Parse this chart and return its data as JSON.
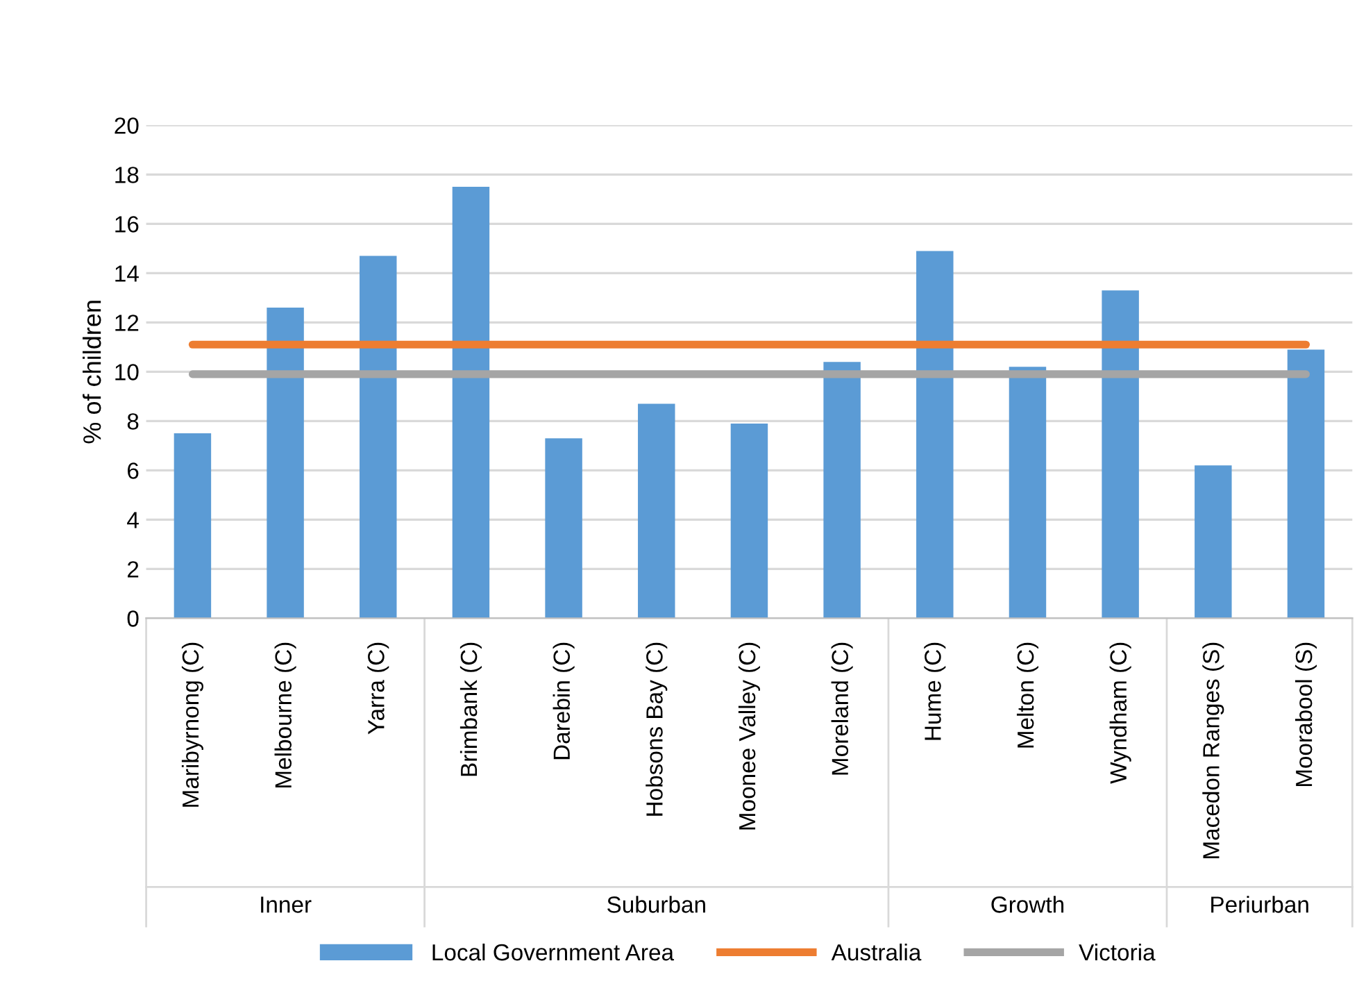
{
  "chart_data": {
    "type": "bar",
    "ylabel": "% of children",
    "categories": [
      "Maribyrnong (C)",
      "Melbourne (C)",
      "Yarra (C)",
      "Brimbank (C)",
      "Darebin (C)",
      "Hobsons Bay (C)",
      "Moonee Valley (C)",
      "Moreland (C)",
      "Hume (C)",
      "Melton (C)",
      "Wyndham (C)",
      "Macedon Ranges (S)",
      "Moorabool (S)"
    ],
    "series": [
      {
        "name": "Local Government Area",
        "color": "#5b9bd5",
        "values": [
          7.5,
          12.6,
          14.7,
          17.5,
          7.3,
          8.7,
          7.9,
          10.4,
          14.9,
          10.2,
          13.3,
          6.2,
          10.9
        ]
      },
      {
        "name": "Australia",
        "type": "line",
        "color": "#ed7d31",
        "values": [
          11.1,
          11.1,
          11.1,
          11.1,
          11.1,
          11.1,
          11.1,
          11.1,
          11.1,
          11.1,
          11.1,
          11.1,
          11.1
        ]
      },
      {
        "name": "Victoria",
        "type": "line",
        "color": "#a5a5a5",
        "values": [
          9.9,
          9.9,
          9.9,
          9.9,
          9.9,
          9.9,
          9.9,
          9.9,
          9.9,
          9.9,
          9.9,
          9.9,
          9.9
        ]
      }
    ],
    "annotations": [
      "Inner",
      "Suburban",
      "Growth",
      "Periurban"
    ],
    "ylim": [
      0,
      20
    ],
    "yticks": [
      0,
      2,
      4,
      6,
      8,
      10,
      12,
      14,
      16,
      18,
      20
    ],
    "grid": "y",
    "legend": "bottom",
    "marker": "none",
    "line_style": "solid"
  }
}
